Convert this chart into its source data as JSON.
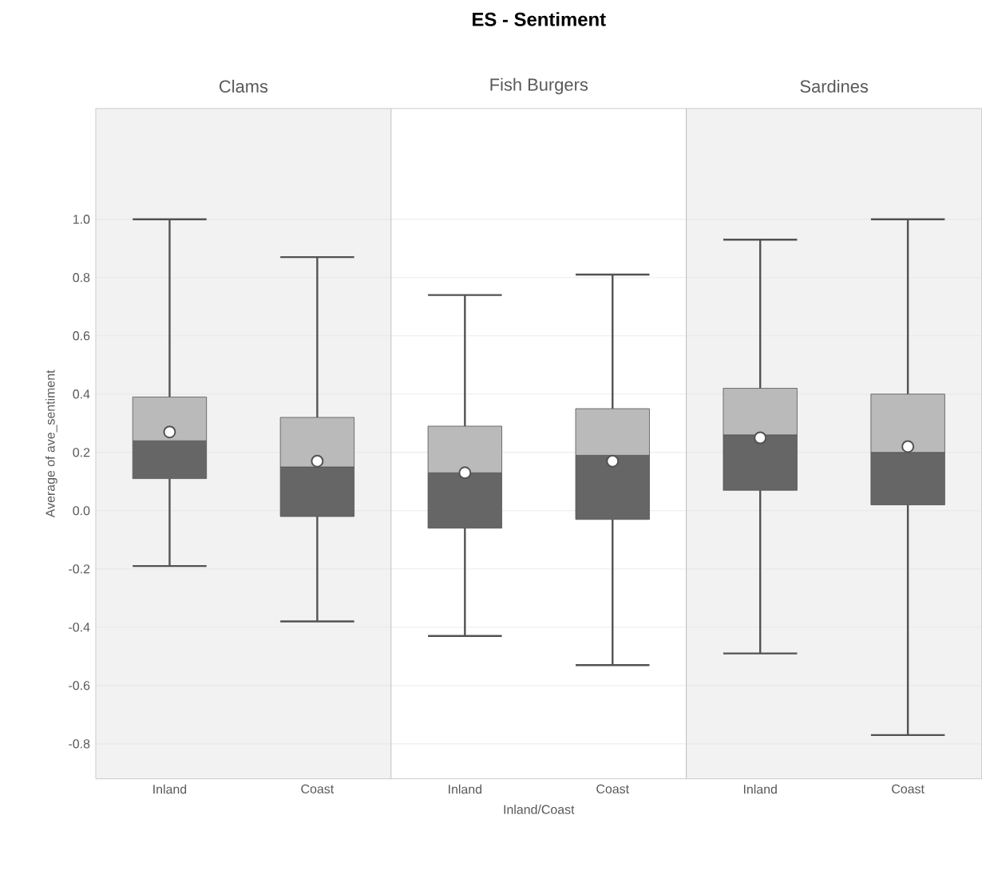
{
  "chart_data": [
    {
      "type": "box",
      "subtitle": "Clams",
      "ylabel": "Average of ave_sentiment",
      "categories": [
        "Inland",
        "Coast"
      ],
      "series": [
        {
          "color": "#666666",
          "boxes": [
            {
              "low": -0.19,
              "q1": 0.11,
              "median": 0.24,
              "q3": 0.39,
              "high": 1.0,
              "mean": 0.27
            },
            {
              "low": -0.38,
              "q1": -0.02,
              "median": 0.15,
              "q3": 0.32,
              "high": 0.87,
              "mean": 0.17
            }
          ]
        }
      ],
      "ylim": [
        -0.92,
        1.38
      ],
      "yticks": [
        {
          "value": -0.8,
          "label": "-0.8"
        },
        {
          "value": -0.6,
          "label": "-0.6"
        },
        {
          "value": -0.4,
          "label": "-0.4"
        },
        {
          "value": -0.2,
          "label": "-0.2"
        },
        {
          "value": 0,
          "label": "0.0"
        },
        {
          "value": 0.2,
          "label": "0.2"
        },
        {
          "value": 0.4,
          "label": "0.4"
        },
        {
          "value": 0.6,
          "label": "0.6"
        },
        {
          "value": 0.8,
          "label": "0.8"
        },
        {
          "value": 1.0,
          "label": "1.0"
        }
      ],
      "grid": "y"
    },
    {
      "type": "box",
      "title": "ES - Sentiment",
      "subtitle": "Fish Burgers",
      "xlabel": "Inland/Coast",
      "categories": [
        "Inland",
        "Coast"
      ],
      "series": [
        {
          "color": "#666666",
          "boxes": [
            {
              "low": -0.43,
              "q1": -0.06,
              "median": 0.13,
              "q3": 0.29,
              "high": 0.74,
              "mean": 0.13
            },
            {
              "low": -0.53,
              "q1": -0.03,
              "median": 0.19,
              "q3": 0.35,
              "high": 0.81,
              "mean": 0.17
            }
          ]
        }
      ],
      "ylim": [
        -0.92,
        1.38
      ],
      "tick_labels": "x",
      "grid": "y"
    },
    {
      "type": "box",
      "subtitle": "Sardines",
      "categories": [
        "Inland",
        "Coast"
      ],
      "series": [
        {
          "color": "#666666",
          "boxes": [
            {
              "low": -0.49,
              "q1": 0.07,
              "median": 0.26,
              "q3": 0.42,
              "high": 0.93,
              "mean": 0.25
            },
            {
              "low": -0.77,
              "q1": 0.02,
              "median": 0.2,
              "q3": 0.4,
              "high": 1.0,
              "mean": 0.22
            }
          ]
        }
      ],
      "ylim": [
        -0.92,
        1.38
      ],
      "tick_labels": "x",
      "grid": "y"
    }
  ]
}
